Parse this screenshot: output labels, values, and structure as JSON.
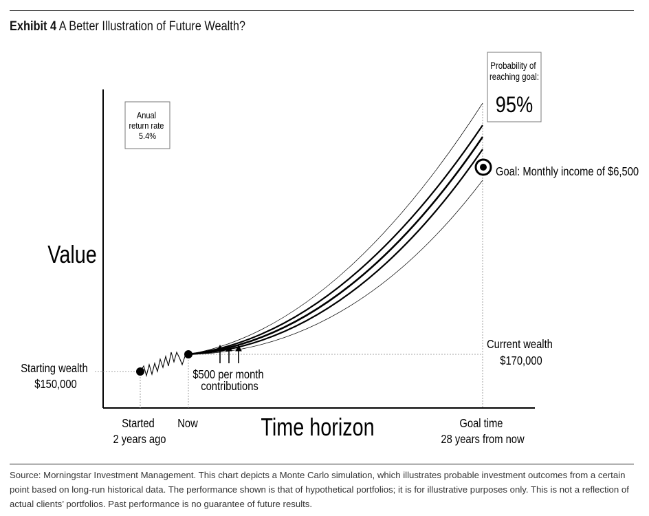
{
  "exhibit_label": "Exhibit 4",
  "exhibit_title": "A Better Illustration of Future Wealth?",
  "source_note": "Source: Morningstar Investment Management. This chart depicts a Monte Carlo simulation, which illustrates probable investment outcomes from a certain point based on long-run historical data. The performance shown is that of hypothetical portfolios; it is for illustrative purposes only. This is not a reflection of actual clients’ portfolios. Past performance is no guarantee of future results.",
  "chart_data": {
    "type": "line",
    "xlabel": "Time horizon",
    "ylabel": "Value",
    "grid": false,
    "return_box": [
      "Anual",
      "return rate",
      "5.4%"
    ],
    "probability_box": {
      "line1": "Probability of",
      "line2": "reaching goal:",
      "value": "95%"
    },
    "goal_label": "Goal: Monthly income of $6,500",
    "starting_wealth": {
      "line1": "Starting wealth",
      "line2": "$150,000",
      "value": 150000
    },
    "current_wealth": {
      "line1": "Current wealth",
      "line2": "$170,000",
      "value": 170000
    },
    "contributions": {
      "line1": "$500 per month",
      "line2": "contributions"
    },
    "x_ticks": {
      "started": {
        "line1": "Started",
        "line2": "2 years ago"
      },
      "now": {
        "line1": "Now"
      },
      "goal_time": {
        "line1": "Goal time",
        "line2": "28 years from now"
      }
    },
    "series": [
      {
        "role": "outer-upper"
      },
      {
        "role": "inner-upper"
      },
      {
        "role": "median"
      },
      {
        "role": "inner-lower"
      },
      {
        "role": "outer-lower"
      }
    ]
  }
}
